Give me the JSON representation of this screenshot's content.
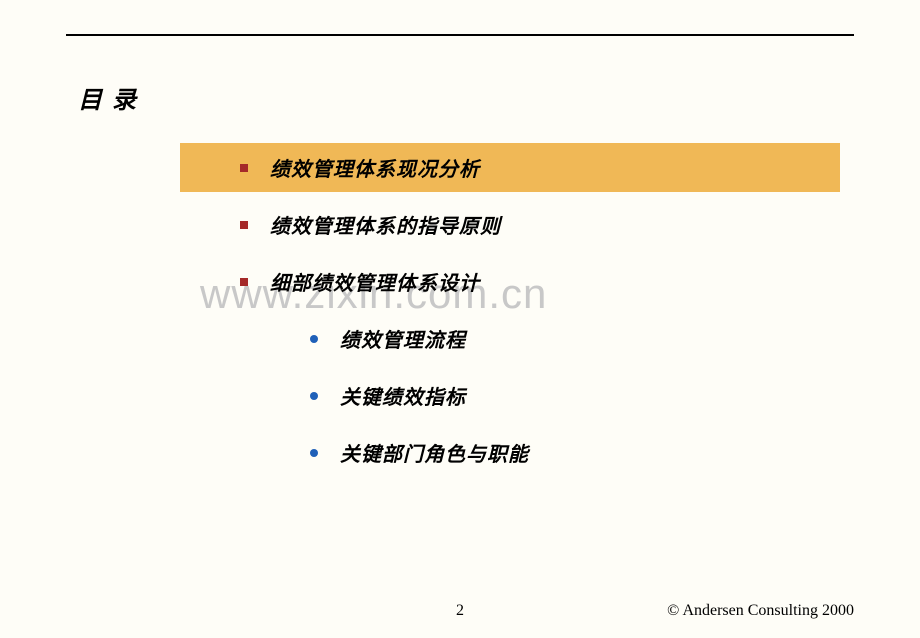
{
  "title": "目 录",
  "toc": {
    "items": [
      {
        "text": "绩效管理体系现况分析",
        "highlighted": true,
        "bullet": "square",
        "sub": false
      },
      {
        "text": "绩效管理体系的指导原则",
        "highlighted": false,
        "bullet": "square",
        "sub": false
      },
      {
        "text": "细部绩效管理体系设计",
        "highlighted": false,
        "bullet": "square",
        "sub": false
      },
      {
        "text": "绩效管理流程",
        "highlighted": false,
        "bullet": "circle",
        "sub": true
      },
      {
        "text": "关键绩效指标",
        "highlighted": false,
        "bullet": "circle",
        "sub": true
      },
      {
        "text": "关键部门角色与职能",
        "highlighted": false,
        "bullet": "circle",
        "sub": true
      }
    ]
  },
  "watermark": "www.zixin.com.cn",
  "page_number": "2",
  "copyright": "© Andersen Consulting 2000",
  "colors": {
    "background": "#fefdf7",
    "rule": "#000000",
    "highlight": "#f0b856",
    "square_bullet": "#a52929",
    "circle_bullet": "#1f60b8",
    "watermark": "#c8c8c8"
  }
}
